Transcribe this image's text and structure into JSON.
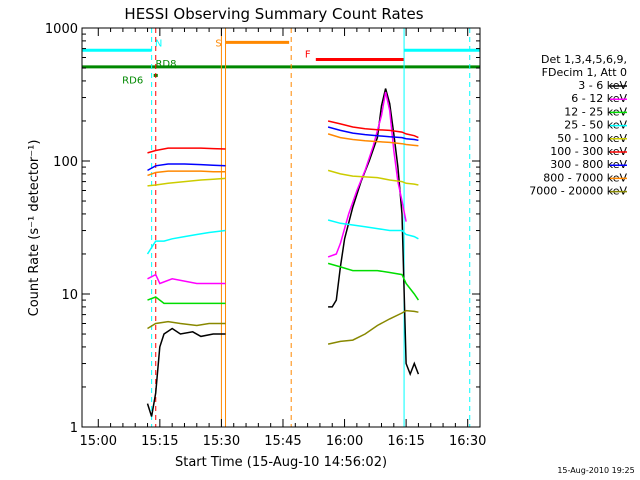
{
  "chart_data": {
    "type": "line",
    "title": "HESSI Observing Summary Count Rates",
    "xlabel": "Start Time (15-Aug-10 14:56:02)",
    "ylabel": "Count Rate (s⁻¹ detector⁻¹)",
    "y_scale": "log",
    "ylim": [
      1,
      1000
    ],
    "xlim": [
      "14:56:02",
      "16:33:00"
    ],
    "x_ticks": [
      "15:00",
      "15:15",
      "15:30",
      "15:45",
      "16:00",
      "16:15",
      "16:30"
    ],
    "y_ticks": [
      "1",
      "10",
      "100",
      "1000"
    ],
    "grid": false,
    "legend_position": "right",
    "legend_header": [
      "Det 1,3,4,5,6,9,",
      "FDecim 1, Att 0"
    ],
    "timestamp": "15-Aug-2010 19:25",
    "series": [
      {
        "name": "3 - 6 keV",
        "color": "#000000",
        "segments": [
          {
            "x": [
              "15:12",
              "15:13",
              "15:14",
              "15:15",
              "15:16",
              "15:18",
              "15:20",
              "15:23",
              "15:25",
              "15:28",
              "15:31"
            ],
            "values": [
              1.5,
              1.2,
              1.8,
              4,
              5,
              5.5,
              5,
              5.2,
              4.8,
              5,
              5
            ]
          },
          {
            "x": [
              "15:56",
              "15:57",
              "15:58",
              "15:59",
              "16:00",
              "16:02",
              "16:04",
              "16:06",
              "16:08",
              "16:09",
              "16:10",
              "16:11",
              "16:12",
              "16:13",
              "16:14",
              "16:15",
              "16:16",
              "16:17",
              "16:18"
            ],
            "values": [
              8,
              8,
              9,
              16,
              26,
              45,
              70,
              100,
              150,
              260,
              350,
              270,
              160,
              90,
              40,
              3,
              2.5,
              3,
              2.5
            ]
          }
        ]
      },
      {
        "name": "6 - 12 keV",
        "color": "#ff00ff",
        "segments": [
          {
            "x": [
              "15:12",
              "15:14",
              "15:15",
              "15:18",
              "15:21",
              "15:24",
              "15:27",
              "15:31"
            ],
            "values": [
              13,
              14,
              12,
              13,
              12.5,
              12,
              12,
              12
            ]
          },
          {
            "x": [
              "15:56",
              "15:58",
              "15:59",
              "16:01",
              "16:03",
              "16:05",
              "16:07",
              "16:09",
              "16:10",
              "16:11",
              "16:12",
              "16:13",
              "16:14",
              "16:15"
            ],
            "values": [
              19,
              20,
              24,
              40,
              60,
              85,
              130,
              220,
              330,
              240,
              120,
              70,
              50,
              35
            ]
          }
        ]
      },
      {
        "name": "12 - 25 keV",
        "color": "#00dd00",
        "segments": [
          {
            "x": [
              "15:12",
              "15:14",
              "15:16",
              "15:18",
              "15:22",
              "15:26",
              "15:31"
            ],
            "values": [
              9,
              9.5,
              8.5,
              8.5,
              8.5,
              8.5,
              8.5
            ]
          },
          {
            "x": [
              "15:56",
              "15:59",
              "16:02",
              "16:05",
              "16:08",
              "16:11",
              "16:14",
              "16:15",
              "16:17",
              "16:18"
            ],
            "values": [
              17,
              16,
              15,
              15,
              15,
              14.5,
              14,
              12,
              10,
              9
            ]
          }
        ]
      },
      {
        "name": "25 - 50 keV",
        "color": "#00ffff",
        "segments": [
          {
            "x": [
              "15:12",
              "15:14",
              "15:16",
              "15:18",
              "15:21",
              "15:24",
              "15:27",
              "15:31"
            ],
            "values": [
              20,
              25,
              25,
              26,
              27,
              28,
              29,
              30
            ]
          },
          {
            "x": [
              "15:56",
              "15:59",
              "16:02",
              "16:05",
              "16:08",
              "16:11",
              "16:14",
              "16:15",
              "16:17",
              "16:18"
            ],
            "values": [
              36,
              34,
              33,
              32,
              31,
              30,
              30,
              28,
              27,
              26
            ]
          }
        ]
      },
      {
        "name": "50 - 100 keV",
        "color": "#cccc00",
        "segments": [
          {
            "x": [
              "15:12",
              "15:14",
              "15:17",
              "15:21",
              "15:25",
              "15:28",
              "15:31"
            ],
            "values": [
              65,
              66,
              68,
              70,
              72,
              73,
              74
            ]
          },
          {
            "x": [
              "15:56",
              "15:59",
              "16:02",
              "16:05",
              "16:08",
              "16:11",
              "16:14",
              "16:15",
              "16:17",
              "16:18"
            ],
            "values": [
              85,
              80,
              77,
              76,
              75,
              72,
              70,
              68,
              67,
              66
            ]
          }
        ]
      },
      {
        "name": "100 - 300 keV",
        "color": "#ff0000",
        "segments": [
          {
            "x": [
              "15:12",
              "15:14",
              "15:17",
              "15:21",
              "15:25",
              "15:28",
              "15:31"
            ],
            "values": [
              115,
              120,
              125,
              125,
              125,
              124,
              123
            ]
          },
          {
            "x": [
              "15:56",
              "15:59",
              "16:02",
              "16:05",
              "16:08",
              "16:11",
              "16:14",
              "16:15",
              "16:17",
              "16:18"
            ],
            "values": [
              200,
              190,
              180,
              175,
              172,
              170,
              165,
              160,
              155,
              150
            ]
          }
        ]
      },
      {
        "name": "300 - 800 keV",
        "color": "#0000ff",
        "segments": [
          {
            "x": [
              "15:12",
              "15:14",
              "15:17",
              "15:21",
              "15:25",
              "15:28",
              "15:31"
            ],
            "values": [
              85,
              92,
              95,
              95,
              94,
              93,
              92
            ]
          },
          {
            "x": [
              "15:56",
              "15:59",
              "16:02",
              "16:05",
              "16:08",
              "16:11",
              "16:14",
              "16:15",
              "16:17",
              "16:18"
            ],
            "values": [
              180,
              170,
              162,
              158,
              155,
              152,
              150,
              147,
              145,
              143
            ]
          }
        ]
      },
      {
        "name": "800 - 7000 keV",
        "color": "#ff8800",
        "segments": [
          {
            "x": [
              "15:12",
              "15:14",
              "15:17",
              "15:21",
              "15:25",
              "15:28",
              "15:31"
            ],
            "values": [
              78,
              82,
              84,
              84,
              84,
              83,
              83
            ]
          },
          {
            "x": [
              "15:56",
              "15:59",
              "16:02",
              "16:05",
              "16:08",
              "16:11",
              "16:14",
              "16:15",
              "16:17",
              "16:18"
            ],
            "values": [
              160,
              150,
              145,
              142,
              140,
              138,
              135,
              133,
              131,
              130
            ]
          }
        ]
      },
      {
        "name": "7000 - 20000 keV",
        "color": "#888800",
        "segments": [
          {
            "x": [
              "15:12",
              "15:14",
              "15:17",
              "15:20",
              "15:24",
              "15:27",
              "15:31"
            ],
            "values": [
              5.5,
              6,
              6.2,
              6,
              5.8,
              6,
              6
            ]
          },
          {
            "x": [
              "15:56",
              "15:59",
              "16:02",
              "16:05",
              "16:08",
              "16:11",
              "16:14",
              "16:15",
              "16:17",
              "16:18"
            ],
            "values": [
              4.2,
              4.4,
              4.5,
              5,
              5.8,
              6.5,
              7.2,
              7.5,
              7.4,
              7.3
            ]
          }
        ]
      }
    ],
    "flags": [
      {
        "label": "N",
        "color": "#00ffff",
        "x_start": "14:56:02",
        "x_end": "15:13:00",
        "y": 680
      },
      {
        "label": "N",
        "color": "#00ffff",
        "x_start": "16:14:30",
        "x_end": "16:33:00",
        "y": 680,
        "show_label": false
      },
      {
        "label": "S",
        "color": "#ff8800",
        "x_start": "15:31:00",
        "x_end": "15:46:30",
        "y": 780
      },
      {
        "label": "F",
        "color": "#ff0000",
        "x_start": "15:53:00",
        "x_end": "16:14:30",
        "y": 580
      },
      {
        "label": "RD6",
        "color": "#008800",
        "x_start": "15:13:30",
        "x_end": "15:14:30",
        "y": 440
      },
      {
        "label": "RD8",
        "color": "#008800",
        "x_start": "14:56:02",
        "x_end": "16:33:00",
        "y": 510
      }
    ],
    "vlines": [
      {
        "x": "15:13:00",
        "color": "#00ffff",
        "style": "dashed"
      },
      {
        "x": "15:14:00",
        "color": "#ff0000",
        "style": "dashed"
      },
      {
        "x": "15:30:00",
        "color": "#ff8800",
        "style": "solid"
      },
      {
        "x": "15:31:00",
        "color": "#ff8800",
        "style": "solid"
      },
      {
        "x": "15:47:00",
        "color": "#ff8800",
        "style": "dashed"
      },
      {
        "x": "16:14:30",
        "color": "#00ffff",
        "style": "solid"
      },
      {
        "x": "16:30:30",
        "color": "#00ffff",
        "style": "dashed"
      }
    ]
  }
}
